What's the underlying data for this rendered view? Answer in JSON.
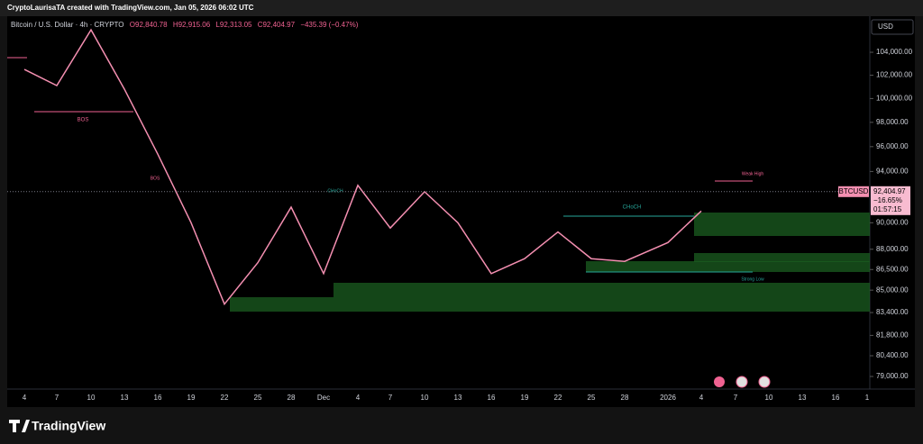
{
  "header": {
    "attribution": "CryptoLaurisaTA created with TradingView.com, Jan 05, 2026 06:02 UTC",
    "legend": {
      "symbol": "Bitcoin / U.S. Dollar · 4h · CRYPTO",
      "open": "O92,840.78",
      "high": "H92,915.06",
      "low": "L92,313.05",
      "close": "C92,404.97",
      "change": "−435.39 (−0.47%)"
    }
  },
  "currency": "USD",
  "annotations": [
    "BOS",
    "CHoCH",
    "Weak High",
    "Strong Low",
    "BOS",
    "CHoCH"
  ],
  "footer": {
    "logo": "TradingView"
  },
  "chart_data": {
    "type": "line",
    "log": true,
    "color": "#f48fb1",
    "categories": [
      "4",
      "7",
      "10",
      "13",
      "16",
      "19",
      "22",
      "25",
      "28",
      "Dec",
      "4",
      "7",
      "10",
      "13",
      "16",
      "19",
      "22",
      "25",
      "28",
      "2026",
      "4",
      "7",
      "10",
      "13",
      "16",
      "1"
    ],
    "series": [
      {
        "name": "BTCUSD",
        "color": "#f48fb1",
        "values": [
          102500,
          101100,
          106000,
          100800,
          95400,
          90000,
          84000,
          87000,
          91200,
          86200,
          92900,
          89600,
          92400,
          90000,
          86200,
          87300,
          89300,
          87300,
          87100,
          88500,
          90900,
          null,
          null,
          null,
          null,
          null
        ]
      }
    ],
    "ylim": [
      78160,
      107230
    ],
    "yticks": [
      {
        "value": 104000,
        "label": "104,000.00"
      },
      {
        "value": 102000,
        "label": "102,000.00"
      },
      {
        "value": 100000,
        "label": "100,000.00"
      },
      {
        "value": 98000,
        "label": "98,000.00"
      },
      {
        "value": 96000,
        "label": "96,000.00"
      },
      {
        "value": 94000,
        "label": "94,000.00"
      },
      {
        "value": 90000,
        "label": "90,000.00"
      },
      {
        "value": 88000,
        "label": "88,000.00"
      },
      {
        "value": 86500,
        "label": "86,500.00"
      },
      {
        "value": 85000,
        "label": "85,000.00"
      },
      {
        "value": 83400,
        "label": "83,400.00"
      },
      {
        "value": 81800,
        "label": "81,800.00"
      },
      {
        "value": 80400,
        "label": "80,400.00"
      },
      {
        "value": 79000,
        "label": "79,000.00"
      }
    ],
    "last_price": {
      "value": 92404.97,
      "label": "92,404.97"
    },
    "symbol_label": "BTCUSD",
    "change_label": "−16.65%",
    "countdown": "01:57:15"
  }
}
